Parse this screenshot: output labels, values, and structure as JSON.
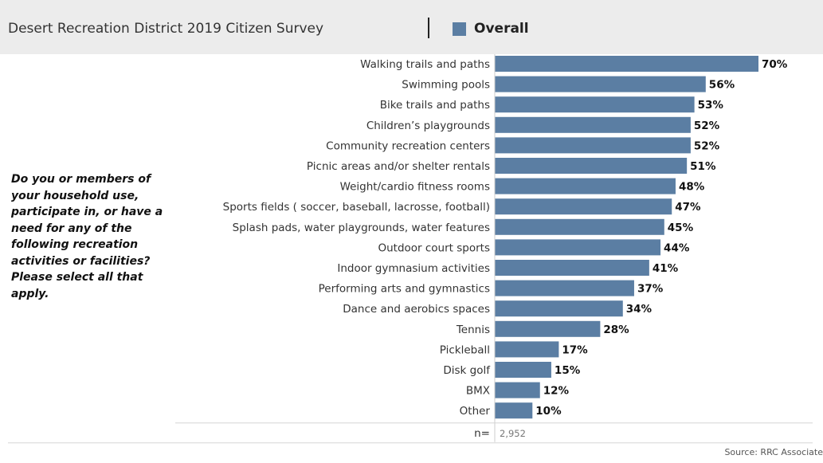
{
  "header": {
    "title": "Desert Recreation District 2019 Citizen Survey",
    "legend_label": "Overall"
  },
  "question": "Do you or members of your household use, participate in, or have a need for any of the following recreation activities or facilities? Please select all that apply.",
  "source": "Source: RRC Associate",
  "colors": {
    "bar": "#5b7ea3",
    "header_bg": "#ececec"
  },
  "chart_data": {
    "type": "bar",
    "orientation": "horizontal",
    "categories": [
      "Walking trails and paths",
      "Swimming pools",
      "Bike trails and paths",
      "Children’s playgrounds",
      "Community recreation centers",
      "Picnic areas and/or shelter rentals",
      "Weight/cardio fitness rooms",
      "Sports fields ( soccer, baseball, lacrosse, football)",
      "Splash pads, water playgrounds, water features",
      "Outdoor court sports",
      "Indoor gymnasium activities",
      "Performing arts and gymnastics",
      "Dance and aerobics spaces",
      "Tennis",
      "Pickleball",
      "Disk golf",
      "BMX",
      "Other"
    ],
    "values": [
      70,
      56,
      53,
      52,
      52,
      51,
      48,
      47,
      45,
      44,
      41,
      37,
      34,
      28,
      17,
      15,
      12,
      10
    ],
    "value_labels": [
      "70%",
      "56%",
      "53%",
      "52%",
      "52%",
      "51%",
      "48%",
      "47%",
      "45%",
      "44%",
      "41%",
      "37%",
      "34%",
      "28%",
      "17%",
      "15%",
      "12%",
      "10%"
    ],
    "series": [
      {
        "name": "Overall"
      }
    ],
    "n_label": "n=",
    "n_value": "2,952",
    "xlim": [
      0,
      70
    ],
    "grid": false
  }
}
